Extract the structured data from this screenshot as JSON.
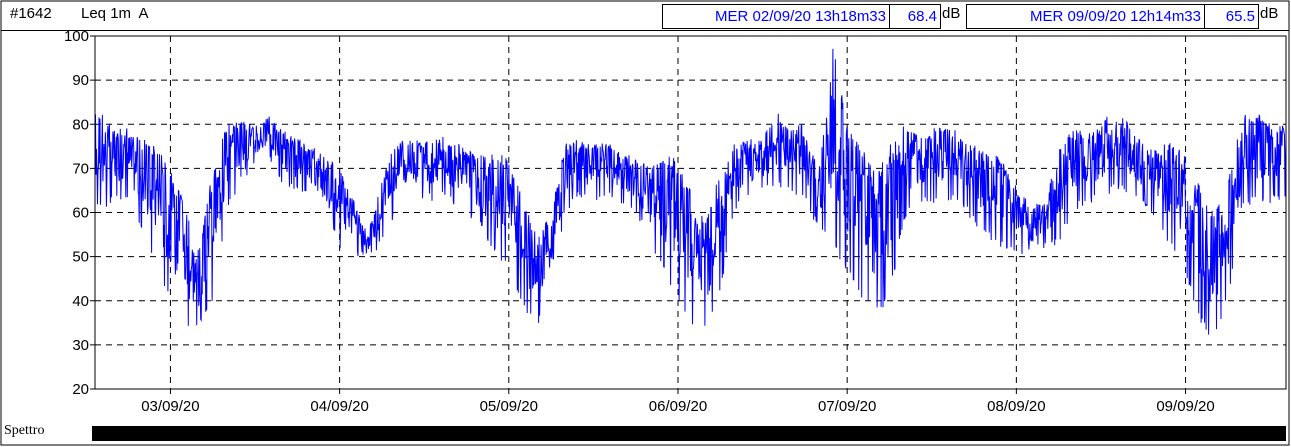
{
  "header": {
    "id": "#1642",
    "measure": "Leq 1m  A",
    "cursor1": {
      "label": "MER 02/09/20 13h18m33",
      "value": "68.4",
      "unit": "dB"
    },
    "cursor2": {
      "label": "MER 09/09/20 12h14m33",
      "value": "65.5",
      "unit": "dB"
    }
  },
  "spectrum_label": "Spettro",
  "colors": {
    "series": "#0000ff",
    "grid": "#000000",
    "text_accent": "#0000ff"
  },
  "chart_data": {
    "type": "line",
    "title": "",
    "xlabel": "",
    "ylabel": "",
    "ylim": [
      20,
      100
    ],
    "yticks": [
      20,
      30,
      40,
      50,
      60,
      70,
      80,
      90,
      100
    ],
    "xlim": [
      "02/09/20 13:18",
      "09/09/20 14:15"
    ],
    "xtick_labels": [
      "03/09/20",
      "04/09/20",
      "05/09/20",
      "06/09/20",
      "07/09/20",
      "08/09/20",
      "09/09/20"
    ],
    "grid": true,
    "series": [
      {
        "color": "#0000ff",
        "x_unit": "hour",
        "x": [
          "02/09/20 14:00",
          "02/09/20 16:00",
          "02/09/20 18:00",
          "02/09/20 20:00",
          "02/09/20 22:00",
          "03/09/20 00:00",
          "03/09/20 02:00",
          "03/09/20 04:00",
          "03/09/20 06:00",
          "03/09/20 08:00",
          "03/09/20 10:00",
          "03/09/20 12:00",
          "03/09/20 14:00",
          "03/09/20 16:00",
          "03/09/20 18:00",
          "03/09/20 20:00",
          "03/09/20 22:00",
          "04/09/20 00:00",
          "04/09/20 02:00",
          "04/09/20 04:00",
          "04/09/20 06:00",
          "04/09/20 08:00",
          "04/09/20 10:00",
          "04/09/20 12:00",
          "04/09/20 14:00",
          "04/09/20 16:00",
          "04/09/20 18:00",
          "04/09/20 20:00",
          "04/09/20 22:00",
          "05/09/20 00:00",
          "05/09/20 02:00",
          "05/09/20 04:00",
          "05/09/20 06:00",
          "05/09/20 08:00",
          "05/09/20 10:00",
          "05/09/20 12:00",
          "05/09/20 14:00",
          "05/09/20 16:00",
          "05/09/20 18:00",
          "05/09/20 20:00",
          "05/09/20 22:00",
          "06/09/20 00:00",
          "06/09/20 02:00",
          "06/09/20 04:00",
          "06/09/20 06:00",
          "06/09/20 08:00",
          "06/09/20 10:00",
          "06/09/20 12:00",
          "06/09/20 14:00",
          "06/09/20 16:00",
          "06/09/20 18:00",
          "06/09/20 20:00",
          "06/09/20 22:00",
          "07/09/20 00:00",
          "07/09/20 02:00",
          "07/09/20 04:00",
          "07/09/20 06:00",
          "07/09/20 08:00",
          "07/09/20 10:00",
          "07/09/20 12:00",
          "07/09/20 14:00",
          "07/09/20 16:00",
          "07/09/20 18:00",
          "07/09/20 20:00",
          "07/09/20 22:00",
          "08/09/20 00:00",
          "08/09/20 02:00",
          "08/09/20 04:00",
          "08/09/20 06:00",
          "08/09/20 08:00",
          "08/09/20 10:00",
          "08/09/20 12:00",
          "08/09/20 14:00",
          "08/09/20 16:00",
          "08/09/20 18:00",
          "08/09/20 20:00",
          "08/09/20 22:00",
          "09/09/20 00:00",
          "09/09/20 02:00",
          "09/09/20 04:00",
          "09/09/20 06:00",
          "09/09/20 08:00",
          "09/09/20 10:00",
          "09/09/20 12:00",
          "09/09/20 14:00"
        ],
        "max": [
          83,
          80,
          79,
          77,
          75,
          70,
          62,
          52,
          70,
          80,
          81,
          80,
          82,
          79,
          77,
          75,
          73,
          70,
          63,
          55,
          68,
          76,
          77,
          76,
          78,
          76,
          75,
          73,
          74,
          72,
          63,
          55,
          60,
          76,
          77,
          76,
          76,
          74,
          73,
          72,
          73,
          72,
          64,
          58,
          70,
          76,
          77,
          77,
          83,
          79,
          81,
          70,
          98,
          80,
          75,
          70,
          76,
          80,
          78,
          79,
          80,
          78,
          76,
          74,
          72,
          66,
          62,
          63,
          74,
          80,
          78,
          80,
          86,
          80,
          76,
          75,
          76,
          73,
          66,
          60,
          67,
          82,
          83,
          80,
          80
        ],
        "min": [
          60,
          62,
          63,
          55,
          47,
          40,
          33,
          33,
          40,
          60,
          67,
          70,
          72,
          66,
          64,
          63,
          58,
          52,
          50,
          50,
          52,
          60,
          63,
          62,
          63,
          62,
          60,
          56,
          50,
          47,
          38,
          34,
          40,
          60,
          63,
          62,
          63,
          62,
          60,
          52,
          46,
          40,
          33,
          33,
          42,
          60,
          63,
          64,
          66,
          65,
          62,
          56,
          52,
          46,
          40,
          36,
          40,
          58,
          62,
          62,
          62,
          62,
          57,
          54,
          52,
          50,
          50,
          52,
          52,
          60,
          62,
          62,
          65,
          64,
          62,
          57,
          52,
          46,
          35,
          30,
          40,
          60,
          62,
          62,
          63
        ]
      }
    ]
  }
}
